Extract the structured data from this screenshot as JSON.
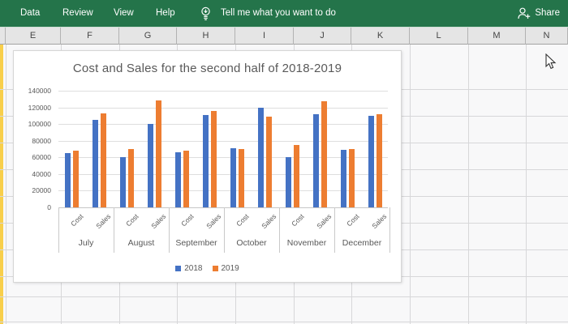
{
  "ribbon": {
    "menus": [
      "Data",
      "Review",
      "View",
      "Help"
    ],
    "tell_me": "Tell me what you want to do",
    "share_label": "Share",
    "color": "#24744a",
    "icons": [
      "lightbulb-icon",
      "share-person-plus-icon"
    ]
  },
  "columns": [
    "E",
    "F",
    "G",
    "H",
    "I",
    "J",
    "K",
    "L",
    "M",
    "N"
  ],
  "chart_data": {
    "type": "bar",
    "title": "Cost and Sales for the second half of 2018-2019",
    "group_labels": [
      "July",
      "August",
      "September",
      "October",
      "November",
      "December"
    ],
    "sub_labels": [
      "Cost",
      "Sales"
    ],
    "categories": [
      "July Cost",
      "July Sales",
      "August Cost",
      "August Sales",
      "September Cost",
      "September Sales",
      "October Cost",
      "October Sales",
      "November Cost",
      "November Sales",
      "December Cost",
      "December Sales"
    ],
    "series": [
      {
        "name": "2018",
        "color": "#4472C4",
        "values": [
          65000,
          105000,
          60000,
          100000,
          66000,
          111000,
          71000,
          120000,
          60000,
          112000,
          69000,
          110000
        ]
      },
      {
        "name": "2019",
        "color": "#ED7D31",
        "values": [
          68000,
          113000,
          70000,
          128000,
          68000,
          116000,
          70000,
          109000,
          75000,
          127000,
          70000,
          112000
        ]
      }
    ],
    "ylim": [
      0,
      140000
    ],
    "ytick_step": 20000,
    "yticks": [
      "0",
      "20000",
      "40000",
      "60000",
      "80000",
      "100000",
      "120000",
      "140000"
    ],
    "xlabel": "",
    "ylabel": "",
    "legend_position": "bottom",
    "grid": true,
    "accent_colors": {
      "blue": "#4472C4",
      "orange": "#ED7D31",
      "text": "#595959"
    }
  },
  "sheet": {
    "highlight_color": "#f8cf4b"
  }
}
